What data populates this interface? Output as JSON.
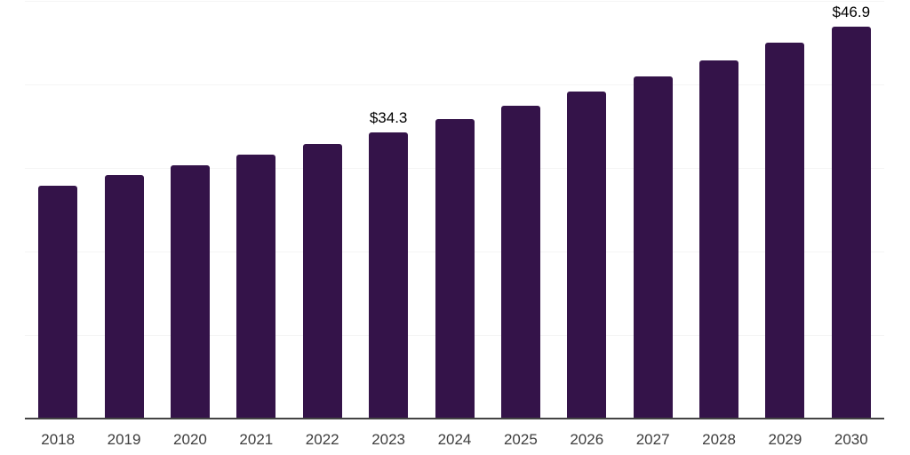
{
  "chart_data": {
    "type": "bar",
    "title": "",
    "xlabel": "",
    "ylabel": "",
    "categories": [
      "2018",
      "2019",
      "2020",
      "2021",
      "2022",
      "2023",
      "2024",
      "2025",
      "2026",
      "2027",
      "2028",
      "2029",
      "2030"
    ],
    "values": [
      27.9,
      29.1,
      30.3,
      31.6,
      32.9,
      34.3,
      35.9,
      37.5,
      39.2,
      41.0,
      42.9,
      45.0,
      46.9
    ],
    "data_labels": {
      "2023": "$34.3",
      "2030": "$46.9"
    },
    "ylim": [
      0,
      50
    ],
    "gridline_values": [
      10,
      20,
      30,
      40,
      50
    ],
    "grid": "horizontal",
    "legend": "none"
  },
  "colors": {
    "bar": "#341349",
    "axis_line": "#444444",
    "gridline": "#f5f5f5",
    "tick_label": "#3d3d3d",
    "value_label": "#000000",
    "background": "#ffffff"
  }
}
